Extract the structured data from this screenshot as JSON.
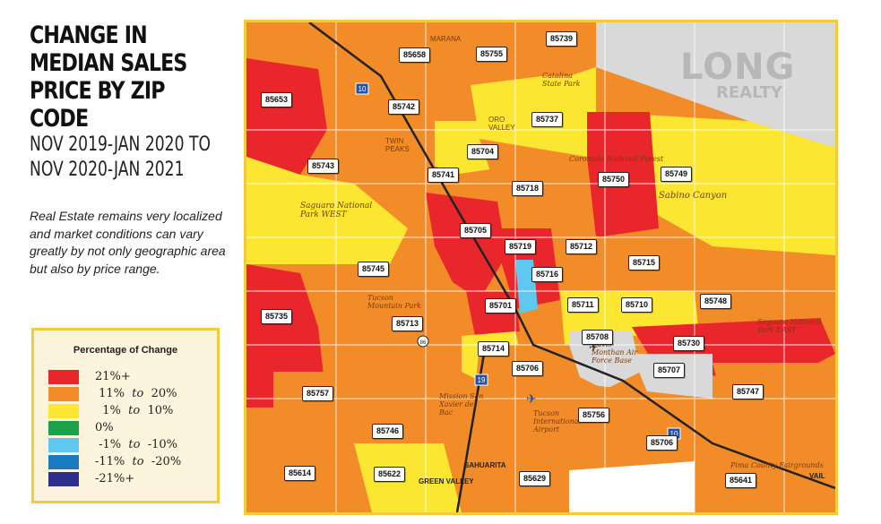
{
  "title": "CHANGE IN MEDIAN SALES PRICE BY ZIP CODE",
  "subtitle": "NOV 2019-JAN 2020 TO NOV 2020-JAN 2021",
  "description": "Real Estate remains very localized and market conditions can vary greatly by not only geographic area but also by price range.",
  "legend": {
    "title": "Percentage of Change",
    "items": [
      {
        "label": "21%+",
        "color": "#e8262b"
      },
      {
        "from": "11%",
        "word": "to",
        "to": "20%",
        "color": "#f28c28"
      },
      {
        "from": "1%",
        "word": "to",
        "to": "10%",
        "color": "#fbe732"
      },
      {
        "label": "0%",
        "color": "#1aa14a"
      },
      {
        "from": "-1%",
        "word": "to",
        "to": "-10%",
        "color": "#5fc8f0"
      },
      {
        "from": "-11%",
        "word": "to",
        "to": "-20%",
        "color": "#1b7bc1"
      },
      {
        "label": "-21%+",
        "color": "#2c2f8c"
      }
    ]
  },
  "logo": {
    "line1": "LONG",
    "line2": "REALTY"
  },
  "zip_codes": [
    {
      "code": "85739",
      "change": "11% to 20%"
    },
    {
      "code": "85658",
      "change": "11% to 20%"
    },
    {
      "code": "85755",
      "change": "11% to 20%"
    },
    {
      "code": "85653",
      "change": "21%+"
    },
    {
      "code": "85742",
      "change": "11% to 20%"
    },
    {
      "code": "85737",
      "change": "1% to 10%"
    },
    {
      "code": "85743",
      "change": "1% to 10%"
    },
    {
      "code": "85704",
      "change": "1% to 10%"
    },
    {
      "code": "85741",
      "change": "11% to 20%"
    },
    {
      "code": "85718",
      "change": "11% to 20%"
    },
    {
      "code": "85750",
      "change": "21%+"
    },
    {
      "code": "85749",
      "change": "1% to 10%"
    },
    {
      "code": "85705",
      "change": "21%+"
    },
    {
      "code": "85719",
      "change": "21%+"
    },
    {
      "code": "85712",
      "change": "11% to 20%"
    },
    {
      "code": "85715",
      "change": "11% to 20%"
    },
    {
      "code": "85745",
      "change": "11% to 20%"
    },
    {
      "code": "85716",
      "change": "-1% to -10%"
    },
    {
      "code": "85711",
      "change": "1% to 10%"
    },
    {
      "code": "85710",
      "change": "1% to 10%"
    },
    {
      "code": "85748",
      "change": "11% to 20%"
    },
    {
      "code": "85701",
      "change": "21%+"
    },
    {
      "code": "85735",
      "change": "21%+"
    },
    {
      "code": "85713",
      "change": "11% to 20%"
    },
    {
      "code": "85708",
      "change": "n/a"
    },
    {
      "code": "85730",
      "change": "21%+"
    },
    {
      "code": "85714",
      "change": "1% to 10%"
    },
    {
      "code": "85706",
      "change": "11% to 20%"
    },
    {
      "code": "85707",
      "change": "n/a"
    },
    {
      "code": "85757",
      "change": "11% to 20%"
    },
    {
      "code": "85747",
      "change": "11% to 20%"
    },
    {
      "code": "85756",
      "change": "11% to 20%"
    },
    {
      "code": "85746",
      "change": "11% to 20%"
    },
    {
      "code": "85706b",
      "label": "85706",
      "change": "11% to 20%"
    },
    {
      "code": "85614",
      "change": "11% to 20%"
    },
    {
      "code": "85622",
      "change": "1% to 10%"
    },
    {
      "code": "85629",
      "change": "11% to 20%"
    },
    {
      "code": "85641",
      "change": "11% to 20%"
    }
  ],
  "map_labels": {
    "catalina": "Catalina State Park",
    "coronado": "Coronado National Forest",
    "sabino": "Sabino Canyon",
    "saguaro_west": "Saguaro National Park WEST",
    "saguaro_east": "Saguaro National Park EAST",
    "tucson_mtn": "Tucson Mountain Park",
    "twin_peaks": "TWIN PEAKS",
    "oro_valley": "ORO VALLEY",
    "marana": "MARANA",
    "davis": "Davis-Monthan Air Force Base",
    "airport": "Tucson International Airport",
    "mission": "Mission San Xavier del Bac",
    "sahuarita": "SAHUARITA",
    "green_valley": "GREEN VALLEY",
    "vail": "VAIL",
    "fairgrounds": "Pima County Fairgrounds",
    "i10": "10",
    "i19": "19",
    "r86": "86"
  }
}
